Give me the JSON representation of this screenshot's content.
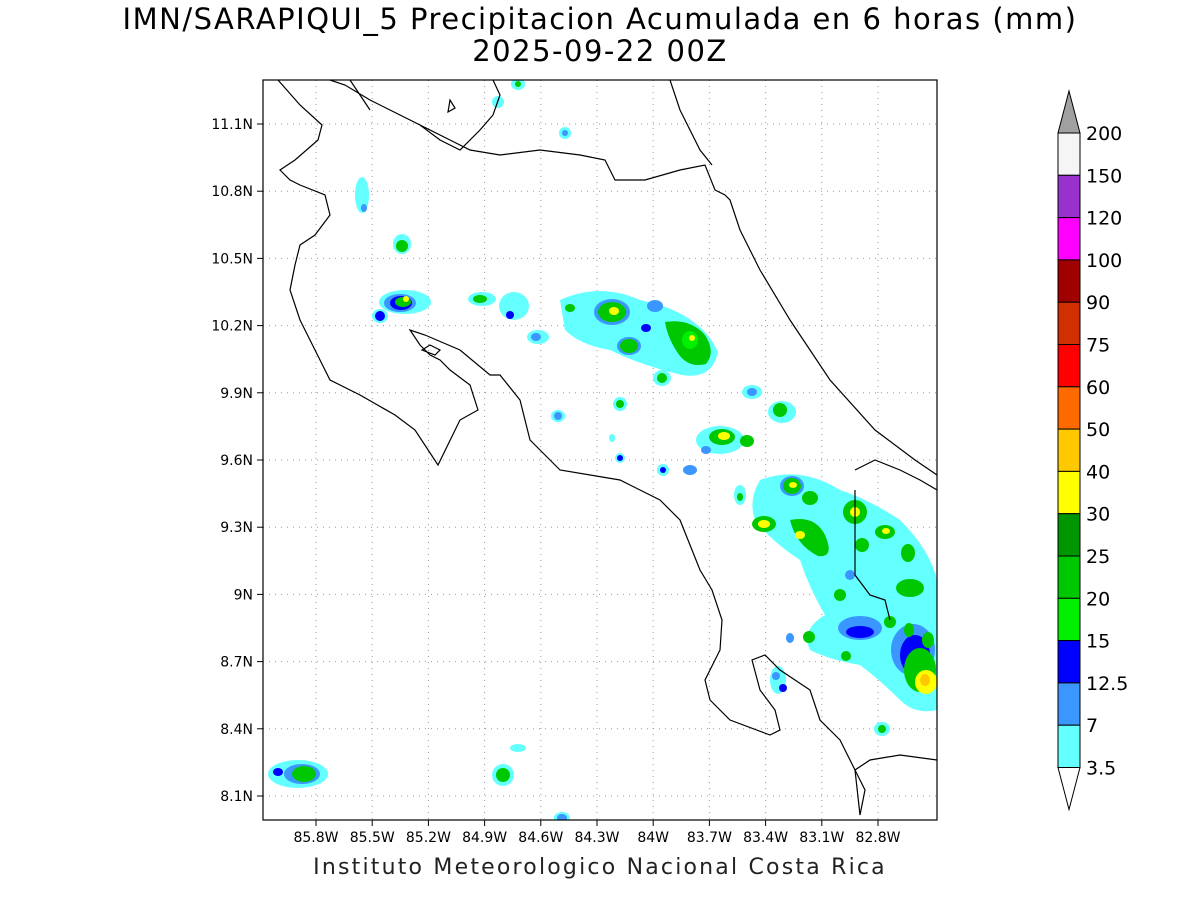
{
  "title": {
    "line1": "IMN/SARAPIQUI_5 Precipitacion Acumulada en 6 horas (mm)",
    "line2": "2025-09-22 00Z"
  },
  "footer": "Instituto Meteorologico Nacional Costa Rica",
  "map": {
    "lon_labels": [
      "85.8W",
      "85.5W",
      "85.2W",
      "84.9W",
      "84.6W",
      "84.3W",
      "84W",
      "83.7W",
      "83.4W",
      "83.1W",
      "82.8W"
    ],
    "lat_labels": [
      "11.1N",
      "10.8N",
      "10.5N",
      "10.2N",
      "9.9N",
      "9.6N",
      "9.3N",
      "9N",
      "8.7N",
      "8.4N",
      "8.1N"
    ],
    "grid": true,
    "region": "Costa Rica"
  },
  "legend": {
    "labels": [
      "200",
      "150",
      "120",
      "100",
      "90",
      "75",
      "60",
      "50",
      "40",
      "30",
      "25",
      "20",
      "15",
      "12.5",
      "7",
      "3.5"
    ],
    "colors": [
      "#a0a0a0",
      "#f5f5f5",
      "#9932cc",
      "#ff00ff",
      "#a00000",
      "#d03000",
      "#ff0000",
      "#ff6a00",
      "#ffc800",
      "#ffff00",
      "#009600",
      "#00c800",
      "#00f000",
      "#0000ff",
      "#3c96ff",
      "#64ffff"
    ]
  },
  "precip_colors": {
    "c3_5": "#64ffff",
    "c7": "#3c96ff",
    "c12_5": "#0000ff",
    "c15": "#00f000",
    "c20": "#00c800",
    "c25": "#009600",
    "c30": "#ffff00",
    "c40": "#ffc800"
  }
}
